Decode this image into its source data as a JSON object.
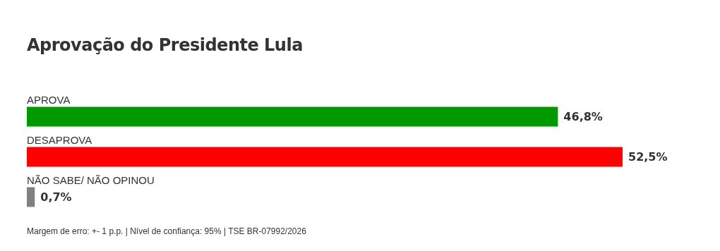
{
  "chart_data": {
    "type": "bar",
    "orientation": "horizontal",
    "title": "Aprovação do Presidente Lula",
    "categories": [
      "APROVA",
      "DESAPROVA",
      "NÃO SABE/ NÃO OPINOU"
    ],
    "values": [
      46.8,
      52.5,
      0.7
    ],
    "colors": [
      "#009900",
      "#ff0000",
      "#808080"
    ],
    "value_labels": [
      "46,8%",
      "52,5%",
      "0,7%"
    ],
    "annotations": [
      "Margem de erro: +- 1 p.p. | Nível de confiança: 95% | TSE BR-07992/2026"
    ],
    "legend": false
  }
}
